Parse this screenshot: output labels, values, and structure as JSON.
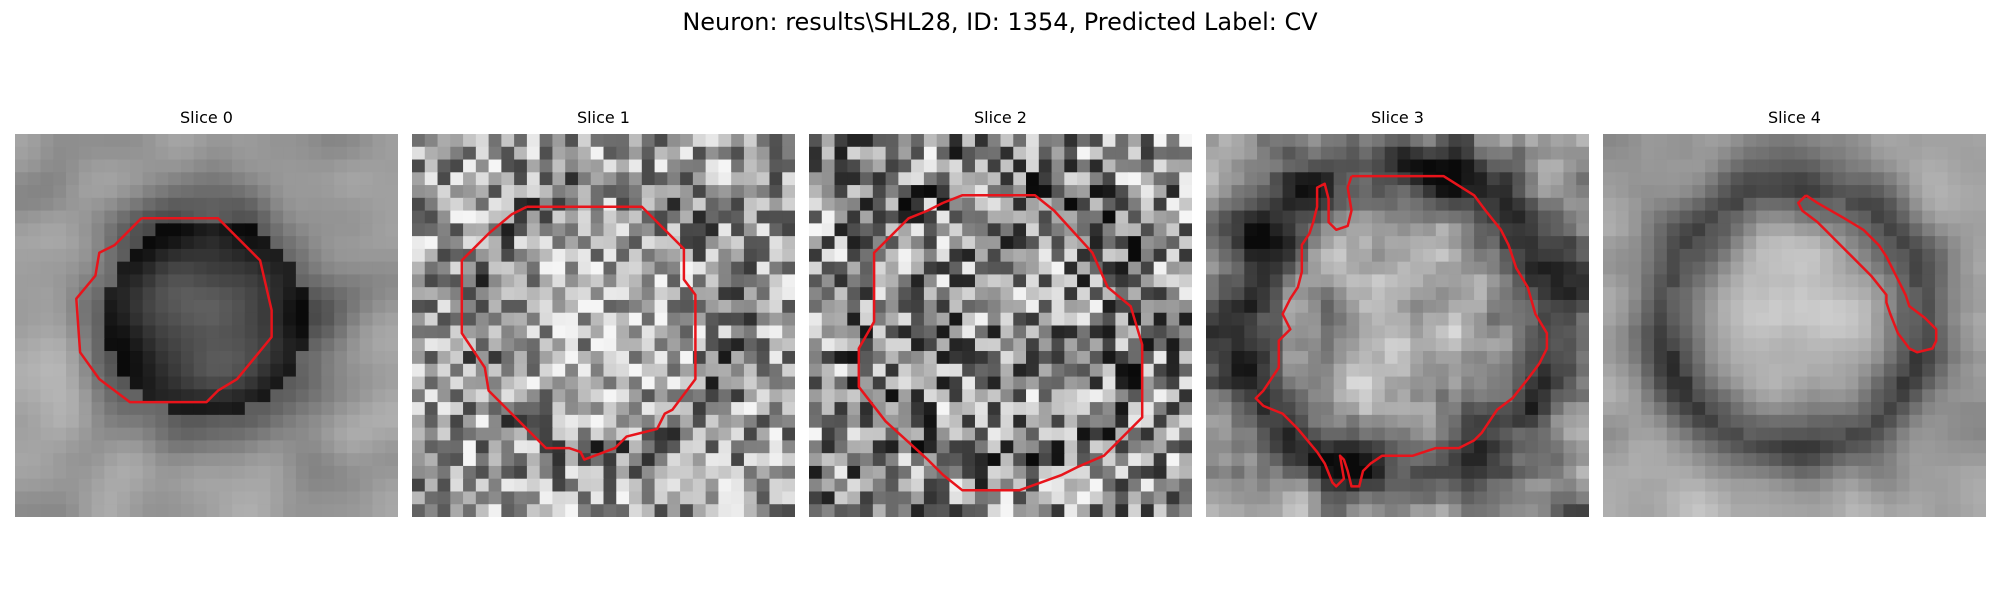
{
  "figure": {
    "title": "Neuron: results\\SHL28, ID: 1354, Predicted Label: CV"
  },
  "slices": [
    {
      "label": "Slice 0"
    },
    {
      "label": "Slice 1"
    },
    {
      "label": "Slice 2"
    },
    {
      "label": "Slice 3"
    },
    {
      "label": "Slice 4"
    }
  ],
  "colors": {
    "contour": "#e8141b",
    "background": "#ffffff"
  }
}
